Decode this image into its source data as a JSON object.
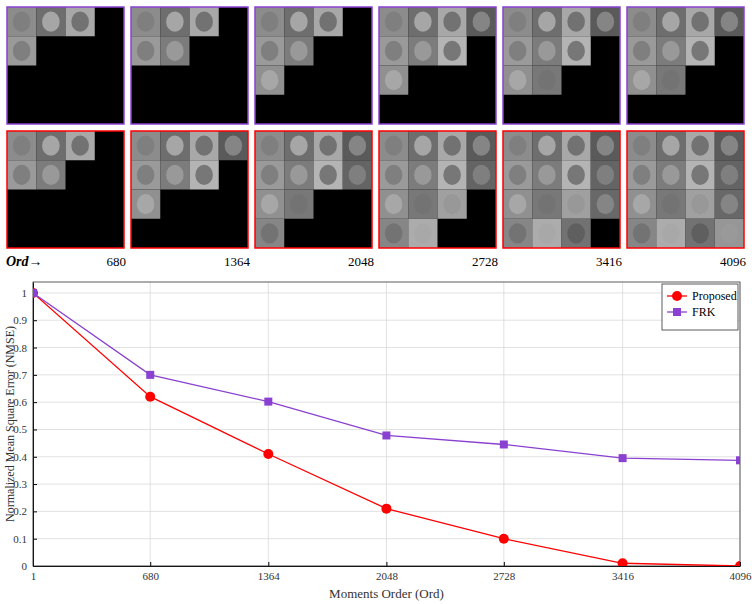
{
  "chart_data": {
    "type": "line",
    "x_label": "Moments Order (Ord)",
    "y_label": "Normalized Mean Square Error (NMSE)",
    "x": [
      1,
      680,
      1364,
      2048,
      2728,
      3416,
      4096
    ],
    "series": [
      {
        "name": "Proposed",
        "color": "#ff0000",
        "marker": "circle",
        "values": [
          1.0,
          0.62,
          0.41,
          0.21,
          0.1,
          0.01,
          0.0
        ]
      },
      {
        "name": "FRK",
        "color": "#8a40d0",
        "marker": "square",
        "values": [
          1.0,
          0.7,
          0.602,
          0.478,
          0.445,
          0.395,
          0.387
        ]
      }
    ],
    "xlim": [
      1,
      4096
    ],
    "xticks": [
      1,
      680,
      1364,
      2048,
      2728,
      3416,
      4096
    ],
    "ylim": [
      0,
      1.04
    ],
    "yticks": [
      0,
      0.1,
      0.2,
      0.3,
      0.4,
      0.5,
      0.6,
      0.7,
      0.8,
      0.9,
      1
    ],
    "grid": true,
    "legend": "upper right"
  },
  "panels": {
    "label": "Ord→",
    "orders": [
      680,
      1364,
      2048,
      2728,
      3416,
      4096
    ]
  }
}
